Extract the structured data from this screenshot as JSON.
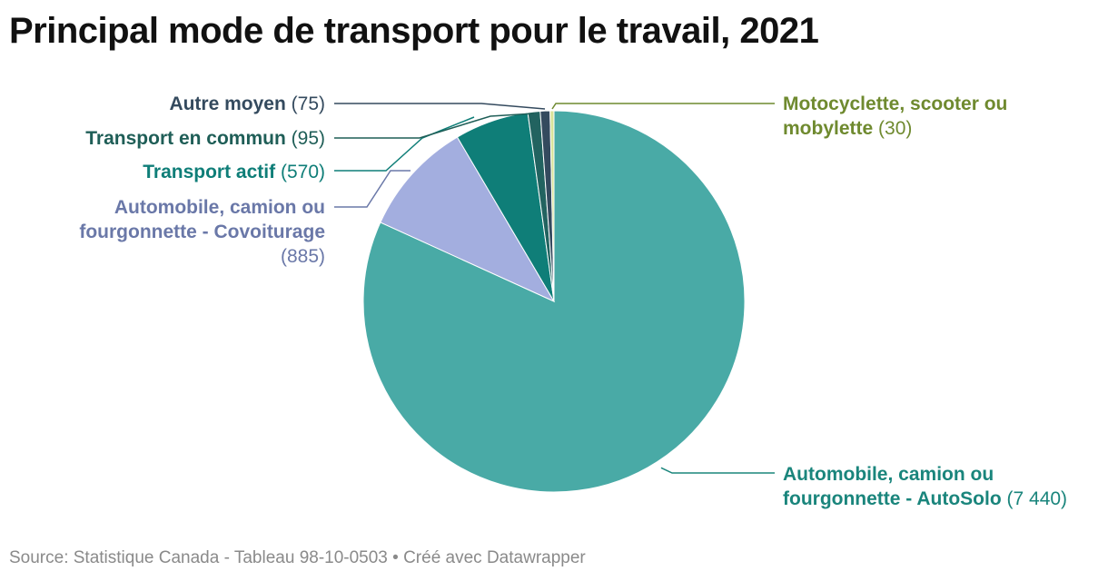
{
  "title": "Principal mode de transport pour le travail, 2021",
  "source": "Source: Statistique Canada - Tableau 98-10-0503 • Créé avec Datawrapper",
  "chart_data": {
    "type": "pie",
    "title": "Principal mode de transport pour le travail, 2021",
    "start": "12 o'clock, clockwise",
    "slices": [
      {
        "name": "Automobile, camion ou fourgonnette - AutoSolo",
        "value": 7440,
        "value_label": "(7 440)",
        "color": "#49aaa6",
        "label_color": "#1a857c"
      },
      {
        "name": "Automobile, camion ou fourgonnette - Covoiturage",
        "value": 885,
        "value_label": "(885)",
        "color": "#a3aedf",
        "label_color": "#6a78a8"
      },
      {
        "name": "Transport actif",
        "value": 570,
        "value_label": "(570)",
        "color": "#0f7e78",
        "label_color": "#0f7e78"
      },
      {
        "name": "Transport en commun",
        "value": 95,
        "value_label": "(95)",
        "color": "#226360",
        "label_color": "#1f5e57"
      },
      {
        "name": "Autre moyen",
        "value": 75,
        "value_label": "(75)",
        "color": "#344a5e",
        "label_color": "#344a5e"
      },
      {
        "name": "Motocyclette, scooter ou mobylette",
        "value": 30,
        "value_label": "(30)",
        "color": "#d9e39a",
        "label_color": "#6f8a2f"
      }
    ]
  }
}
